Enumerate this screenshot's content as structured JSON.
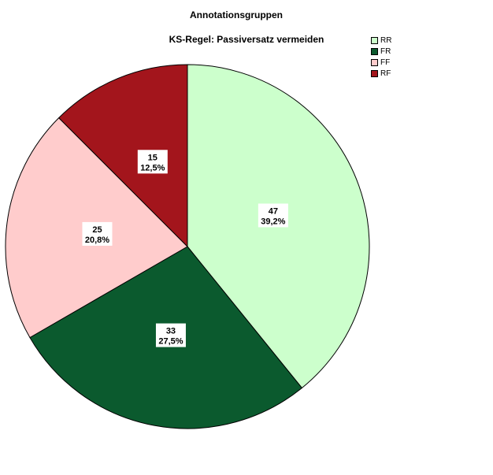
{
  "chart_data": {
    "type": "pie",
    "title": "Annotationsgruppen",
    "subtitle": "KS-Regel: Passiversatz vermeiden",
    "legend_position": "top-right",
    "slices": [
      {
        "label": "RR",
        "value": 47,
        "percent_label": "39,2%",
        "color": "#ccffcc"
      },
      {
        "label": "FR",
        "value": 33,
        "percent_label": "27,5%",
        "color": "#0b5a2e"
      },
      {
        "label": "FF",
        "value": 25,
        "percent_label": "20,8%",
        "color": "#ffcccc"
      },
      {
        "label": "RF",
        "value": 15,
        "percent_label": "12,5%",
        "color": "#a3151c"
      }
    ]
  }
}
